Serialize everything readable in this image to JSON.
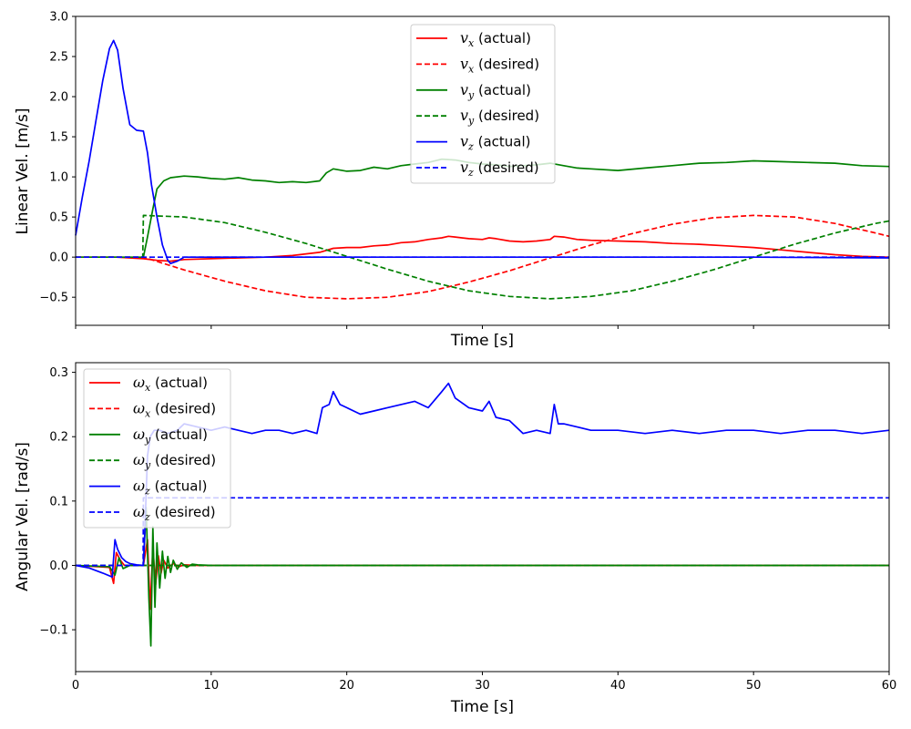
{
  "chart_data": [
    {
      "type": "line",
      "xlabel": "Time [s]",
      "ylabel": "Linear Vel. [m/s]",
      "xlim": [
        0,
        60
      ],
      "ylim": [
        -0.85,
        3.0
      ],
      "x_ticks": [
        0,
        10,
        20,
        30,
        40,
        50,
        60
      ],
      "x_tick_labels_visible": false,
      "y_ticks": [
        -0.5,
        0.0,
        0.5,
        1.0,
        1.5,
        2.0,
        2.5,
        3.0
      ],
      "y_tick_labels": [
        "−0.5",
        "0.0",
        "0.5",
        "1.0",
        "1.5",
        "2.0",
        "2.5",
        "3.0"
      ],
      "grid": false,
      "legend_position": "top-center",
      "series": [
        {
          "name": "v_x (actual)",
          "symbol": "v",
          "sub": "x",
          "suffix": " (actual)",
          "color": "#ff0000",
          "dash": false,
          "x": [
            0,
            2,
            3,
            5,
            6,
            7,
            8,
            10,
            12,
            14,
            16,
            17,
            18,
            19,
            20,
            21,
            22,
            23,
            24,
            25,
            26,
            27,
            27.5,
            28,
            29,
            30,
            30.5,
            31,
            32,
            33,
            34,
            35,
            35.3,
            36,
            37,
            38,
            40,
            42,
            44,
            46,
            48,
            50,
            52,
            54,
            56,
            58,
            60
          ],
          "y": [
            0,
            0,
            0,
            -0.02,
            -0.04,
            -0.05,
            -0.03,
            -0.02,
            -0.01,
            0,
            0.02,
            0.04,
            0.06,
            0.11,
            0.12,
            0.12,
            0.14,
            0.15,
            0.18,
            0.19,
            0.22,
            0.24,
            0.26,
            0.25,
            0.23,
            0.22,
            0.24,
            0.23,
            0.2,
            0.19,
            0.2,
            0.22,
            0.26,
            0.25,
            0.22,
            0.21,
            0.2,
            0.19,
            0.17,
            0.16,
            0.14,
            0.12,
            0.09,
            0.06,
            0.03,
            0.01,
            0
          ]
        },
        {
          "name": "v_x (desired)",
          "symbol": "v",
          "sub": "x",
          "suffix": " (desired)",
          "color": "#ff0000",
          "dash": true,
          "x": [
            0,
            5,
            8,
            11,
            14,
            17,
            20,
            23,
            26,
            29,
            32,
            35,
            38,
            41,
            44,
            47,
            50,
            53,
            56,
            59,
            60
          ],
          "y": [
            0,
            0,
            -0.16,
            -0.3,
            -0.42,
            -0.5,
            -0.52,
            -0.5,
            -0.43,
            -0.31,
            -0.17,
            -0.01,
            0.15,
            0.29,
            0.41,
            0.49,
            0.52,
            0.5,
            0.42,
            0.3,
            0.26
          ]
        },
        {
          "name": "v_y (actual)",
          "symbol": "v",
          "sub": "y",
          "suffix": " (actual)",
          "color": "#008000",
          "dash": false,
          "x": [
            0,
            5,
            5.3,
            5.7,
            6,
            6.5,
            7,
            8,
            9,
            10,
            11,
            12,
            13,
            14,
            15,
            16,
            17,
            18,
            18.5,
            19,
            20,
            21,
            22,
            23,
            24,
            25,
            26,
            27,
            28,
            29,
            30,
            31,
            32,
            33,
            34,
            35,
            36,
            37,
            38,
            40,
            42,
            44,
            46,
            48,
            50,
            52,
            54,
            56,
            58,
            60
          ],
          "y": [
            0,
            0,
            0.25,
            0.6,
            0.85,
            0.95,
            0.99,
            1.01,
            1.0,
            0.98,
            0.97,
            0.99,
            0.96,
            0.95,
            0.93,
            0.94,
            0.93,
            0.95,
            1.05,
            1.1,
            1.07,
            1.08,
            1.12,
            1.1,
            1.14,
            1.16,
            1.18,
            1.22,
            1.21,
            1.18,
            1.16,
            1.15,
            1.13,
            1.14,
            1.15,
            1.17,
            1.14,
            1.11,
            1.1,
            1.08,
            1.11,
            1.14,
            1.17,
            1.18,
            1.2,
            1.19,
            1.18,
            1.17,
            1.14,
            1.13
          ]
        },
        {
          "name": "v_y (desired)",
          "symbol": "v",
          "sub": "y",
          "suffix": " (desired)",
          "color": "#008000",
          "dash": true,
          "x": [
            0,
            4.95,
            5.0,
            8,
            11,
            14,
            17,
            20,
            23,
            26,
            29,
            32,
            35,
            38,
            41,
            44,
            47,
            50,
            53,
            56,
            59,
            60
          ],
          "y": [
            0,
            0,
            0.52,
            0.5,
            0.43,
            0.31,
            0.17,
            0.01,
            -0.15,
            -0.3,
            -0.42,
            -0.49,
            -0.52,
            -0.49,
            -0.42,
            -0.3,
            -0.16,
            0.0,
            0.16,
            0.3,
            0.42,
            0.45
          ]
        },
        {
          "name": "v_z (actual)",
          "symbol": "v",
          "sub": "z",
          "suffix": " (actual)",
          "color": "#0000ff",
          "dash": false,
          "x": [
            0,
            0.5,
            1,
            1.5,
            2,
            2.5,
            2.8,
            3.1,
            3.5,
            4,
            4.5,
            5,
            5.3,
            5.6,
            6,
            6.4,
            6.8,
            7,
            7.5,
            8,
            10,
            15,
            20,
            30,
            40,
            50,
            60
          ],
          "y": [
            0.27,
            0.75,
            1.2,
            1.7,
            2.2,
            2.6,
            2.7,
            2.58,
            2.1,
            1.65,
            1.58,
            1.57,
            1.3,
            0.9,
            0.5,
            0.15,
            -0.04,
            -0.08,
            -0.05,
            0.0,
            0.0,
            0.0,
            0.0,
            0.0,
            0.0,
            0.0,
            -0.01
          ]
        },
        {
          "name": "v_z (desired)",
          "symbol": "v",
          "sub": "z",
          "suffix": " (desired)",
          "color": "#0000ff",
          "dash": true,
          "x": [
            0,
            60
          ],
          "y": [
            0,
            0
          ]
        }
      ]
    },
    {
      "type": "line",
      "xlabel": "Time [s]",
      "ylabel": "Angular Vel. [rad/s]",
      "xlim": [
        0,
        60
      ],
      "ylim": [
        -0.165,
        0.315
      ],
      "x_ticks": [
        0,
        10,
        20,
        30,
        40,
        50,
        60
      ],
      "x_tick_labels": [
        "0",
        "10",
        "20",
        "30",
        "40",
        "50",
        "60"
      ],
      "y_ticks": [
        -0.1,
        0.0,
        0.1,
        0.2,
        0.3
      ],
      "y_tick_labels": [
        "−0.1",
        "0.0",
        "0.1",
        "0.2",
        "0.3"
      ],
      "grid": false,
      "legend_position": "top-left",
      "series": [
        {
          "name": "ω_x (actual)",
          "symbol": "ω",
          "sub": "x",
          "suffix": " (actual)",
          "color": "#ff0000",
          "dash": false,
          "x": [
            0,
            2.5,
            2.8,
            3.0,
            3.3,
            3.6,
            4,
            5,
            5.3,
            5.5,
            5.7,
            5.9,
            6.1,
            6.3,
            6.5,
            6.8,
            7.2,
            7.6,
            8,
            9,
            60
          ],
          "y": [
            0,
            -0.003,
            -0.028,
            0.02,
            0.008,
            0.0,
            0.0,
            0.0,
            0.04,
            -0.068,
            0.028,
            -0.03,
            0.015,
            -0.012,
            0.008,
            -0.004,
            0.003,
            -0.002,
            0.001,
            0,
            0
          ]
        },
        {
          "name": "ω_x (desired)",
          "symbol": "ω",
          "sub": "x",
          "suffix": " (desired)",
          "color": "#ff0000",
          "dash": true,
          "x": [
            0,
            60
          ],
          "y": [
            0,
            0
          ]
        },
        {
          "name": "ω_y (actual)",
          "symbol": "ω",
          "sub": "y",
          "suffix": " (actual)",
          "color": "#008000",
          "dash": false,
          "x": [
            0,
            2.5,
            2.9,
            3.2,
            3.5,
            4,
            5,
            5.2,
            5.4,
            5.55,
            5.7,
            5.85,
            6.0,
            6.2,
            6.4,
            6.6,
            6.8,
            7.0,
            7.2,
            7.5,
            7.8,
            8.2,
            8.6,
            9,
            10,
            60
          ],
          "y": [
            0,
            -0.002,
            -0.015,
            0.012,
            -0.005,
            0.0,
            0.0,
            0.09,
            -0.05,
            -0.125,
            0.06,
            -0.065,
            0.035,
            -0.035,
            0.022,
            -0.02,
            0.014,
            -0.011,
            0.008,
            -0.006,
            0.004,
            -0.003,
            0.002,
            0.001,
            0,
            0
          ]
        },
        {
          "name": "ω_y (desired)",
          "symbol": "ω",
          "sub": "y",
          "suffix": " (desired)",
          "color": "#008000",
          "dash": true,
          "x": [
            0,
            60
          ],
          "y": [
            0,
            0
          ]
        },
        {
          "name": "ω_z (actual)",
          "symbol": "ω",
          "sub": "z",
          "suffix": " (actual)",
          "color": "#0000ff",
          "dash": false,
          "x": [
            0,
            1,
            2,
            2.7,
            2.9,
            3.1,
            3.4,
            3.7,
            4,
            4.5,
            5,
            5.1,
            5.3,
            5.5,
            5.8,
            6.2,
            6.8,
            7.5,
            8,
            9,
            10,
            11,
            12,
            13,
            14,
            15,
            16,
            17,
            17.8,
            18.2,
            18.7,
            19,
            19.5,
            20,
            21,
            22,
            23,
            24,
            25,
            26,
            27,
            27.5,
            28,
            29,
            30,
            30.5,
            31,
            32,
            33,
            34,
            35,
            35.3,
            35.6,
            36,
            37,
            38,
            40,
            42,
            44,
            46,
            48,
            50,
            52,
            54,
            56,
            58,
            60
          ],
          "y": [
            0,
            -0.004,
            -0.012,
            -0.018,
            0.04,
            0.025,
            0.012,
            0.006,
            0.003,
            0.001,
            0.0,
            0.05,
            0.17,
            0.2,
            0.21,
            0.21,
            0.205,
            0.21,
            0.22,
            0.215,
            0.21,
            0.215,
            0.21,
            0.205,
            0.21,
            0.21,
            0.205,
            0.21,
            0.205,
            0.245,
            0.25,
            0.27,
            0.25,
            0.245,
            0.235,
            0.24,
            0.245,
            0.25,
            0.255,
            0.245,
            0.27,
            0.283,
            0.26,
            0.245,
            0.24,
            0.255,
            0.23,
            0.225,
            0.205,
            0.21,
            0.205,
            0.25,
            0.22,
            0.22,
            0.215,
            0.21,
            0.21,
            0.205,
            0.21,
            0.205,
            0.21,
            0.21,
            0.205,
            0.21,
            0.21,
            0.205,
            0.21
          ]
        },
        {
          "name": "ω_z (desired)",
          "symbol": "ω",
          "sub": "z",
          "suffix": " (desired)",
          "color": "#0000ff",
          "dash": true,
          "x": [
            0,
            4.98,
            5.0,
            60
          ],
          "y": [
            0,
            0,
            0.105,
            0.105
          ]
        }
      ]
    }
  ]
}
